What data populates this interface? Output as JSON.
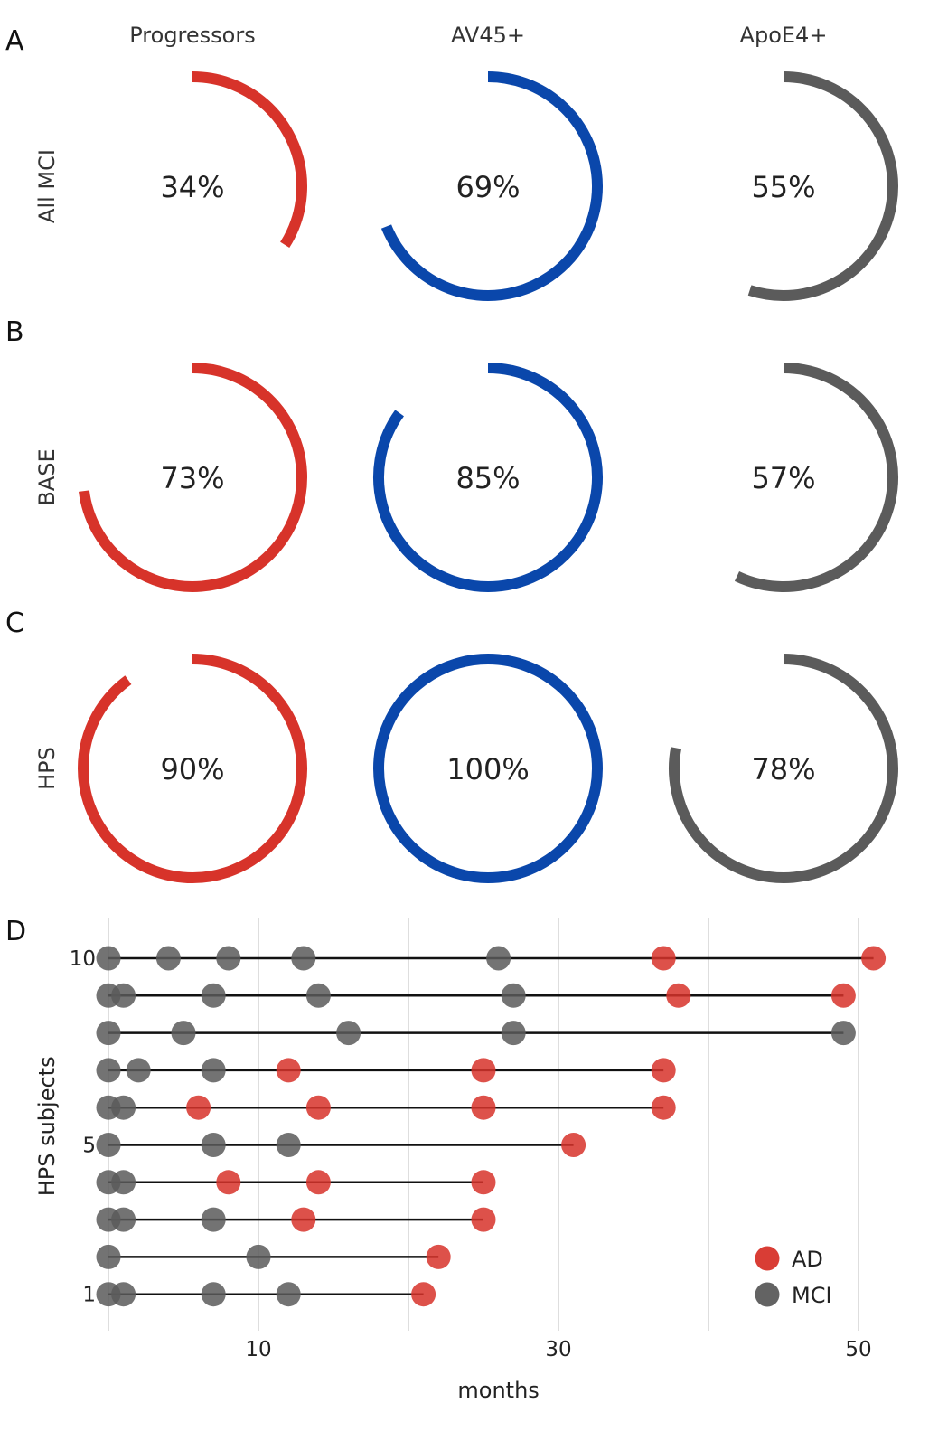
{
  "chart_data": [
    {
      "type": "donut-grid",
      "panels": [
        {
          "letter": "A",
          "row_label": "All MCI",
          "items": [
            {
              "column": "Progressors",
              "value": 34,
              "label": "34%",
              "color": "#d7332a"
            },
            {
              "column": "AV45+",
              "value": 69,
              "label": "69%",
              "color": "#0a47ab"
            },
            {
              "column": "ApoE4+",
              "value": 55,
              "label": "55%",
              "color": "#5b5b5b"
            }
          ]
        },
        {
          "letter": "B",
          "row_label": "BASE",
          "items": [
            {
              "column": "Progressors",
              "value": 73,
              "label": "73%",
              "color": "#d7332a"
            },
            {
              "column": "AV45+",
              "value": 85,
              "label": "85%",
              "color": "#0a47ab"
            },
            {
              "column": "ApoE4+",
              "value": 57,
              "label": "57%",
              "color": "#5b5b5b"
            }
          ]
        },
        {
          "letter": "C",
          "row_label": "HPS",
          "items": [
            {
              "column": "Progressors",
              "value": 90,
              "label": "90%",
              "color": "#d7332a"
            },
            {
              "column": "AV45+",
              "value": 100,
              "label": "100%",
              "color": "#0a47ab"
            },
            {
              "column": "ApoE4+",
              "value": 78,
              "label": "78%",
              "color": "#5b5b5b"
            }
          ]
        }
      ],
      "columns": [
        "Progressors",
        "AV45+",
        "ApoE4+"
      ]
    },
    {
      "type": "scatter",
      "letter": "D",
      "xlabel": "months",
      "ylabel": "HPS subjects",
      "xlim": [
        0,
        52
      ],
      "ylim": [
        0.5,
        10.5
      ],
      "x_ticks": [
        10,
        30,
        50
      ],
      "x_gridlines": [
        0,
        10,
        20,
        30,
        40,
        50
      ],
      "y_ticks": [
        1,
        5,
        10
      ],
      "legend": [
        {
          "name": "AD",
          "color": "#d7332a"
        },
        {
          "name": "MCI",
          "color": "#5b5b5b"
        }
      ],
      "subjects": [
        {
          "subject": 1,
          "end": 21,
          "visits": [
            {
              "x": 0,
              "s": "MCI"
            },
            {
              "x": 1,
              "s": "MCI"
            },
            {
              "x": 7,
              "s": "MCI"
            },
            {
              "x": 12,
              "s": "MCI"
            },
            {
              "x": 21,
              "s": "AD"
            }
          ]
        },
        {
          "subject": 2,
          "end": 22,
          "visits": [
            {
              "x": 0,
              "s": "MCI"
            },
            {
              "x": 10,
              "s": "MCI"
            },
            {
              "x": 22,
              "s": "AD"
            }
          ]
        },
        {
          "subject": 3,
          "end": 25,
          "visits": [
            {
              "x": 0,
              "s": "MCI"
            },
            {
              "x": 1,
              "s": "MCI"
            },
            {
              "x": 7,
              "s": "MCI"
            },
            {
              "x": 13,
              "s": "AD"
            },
            {
              "x": 25,
              "s": "AD"
            }
          ]
        },
        {
          "subject": 4,
          "end": 25,
          "visits": [
            {
              "x": 0,
              "s": "MCI"
            },
            {
              "x": 1,
              "s": "MCI"
            },
            {
              "x": 8,
              "s": "AD"
            },
            {
              "x": 14,
              "s": "AD"
            },
            {
              "x": 25,
              "s": "AD"
            }
          ]
        },
        {
          "subject": 5,
          "end": 31,
          "visits": [
            {
              "x": 0,
              "s": "MCI"
            },
            {
              "x": 7,
              "s": "MCI"
            },
            {
              "x": 12,
              "s": "MCI"
            },
            {
              "x": 31,
              "s": "AD"
            }
          ]
        },
        {
          "subject": 6,
          "end": 37,
          "visits": [
            {
              "x": 0,
              "s": "MCI"
            },
            {
              "x": 1,
              "s": "MCI"
            },
            {
              "x": 6,
              "s": "AD"
            },
            {
              "x": 14,
              "s": "AD"
            },
            {
              "x": 25,
              "s": "AD"
            },
            {
              "x": 37,
              "s": "AD"
            }
          ]
        },
        {
          "subject": 7,
          "end": 37,
          "visits": [
            {
              "x": 0,
              "s": "MCI"
            },
            {
              "x": 2,
              "s": "MCI"
            },
            {
              "x": 7,
              "s": "MCI"
            },
            {
              "x": 12,
              "s": "AD"
            },
            {
              "x": 25,
              "s": "AD"
            },
            {
              "x": 37,
              "s": "AD"
            }
          ]
        },
        {
          "subject": 8,
          "end": 49,
          "visits": [
            {
              "x": 0,
              "s": "MCI"
            },
            {
              "x": 5,
              "s": "MCI"
            },
            {
              "x": 16,
              "s": "MCI"
            },
            {
              "x": 27,
              "s": "MCI"
            },
            {
              "x": 49,
              "s": "MCI"
            }
          ]
        },
        {
          "subject": 9,
          "end": 49,
          "visits": [
            {
              "x": 0,
              "s": "MCI"
            },
            {
              "x": 1,
              "s": "MCI"
            },
            {
              "x": 7,
              "s": "MCI"
            },
            {
              "x": 14,
              "s": "MCI"
            },
            {
              "x": 27,
              "s": "MCI"
            },
            {
              "x": 38,
              "s": "AD"
            },
            {
              "x": 49,
              "s": "AD"
            }
          ]
        },
        {
          "subject": 10,
          "end": 51,
          "visits": [
            {
              "x": 0,
              "s": "MCI"
            },
            {
              "x": 4,
              "s": "MCI"
            },
            {
              "x": 8,
              "s": "MCI"
            },
            {
              "x": 13,
              "s": "MCI"
            },
            {
              "x": 26,
              "s": "MCI"
            },
            {
              "x": 37,
              "s": "AD"
            },
            {
              "x": 51,
              "s": "AD"
            }
          ]
        }
      ]
    }
  ]
}
